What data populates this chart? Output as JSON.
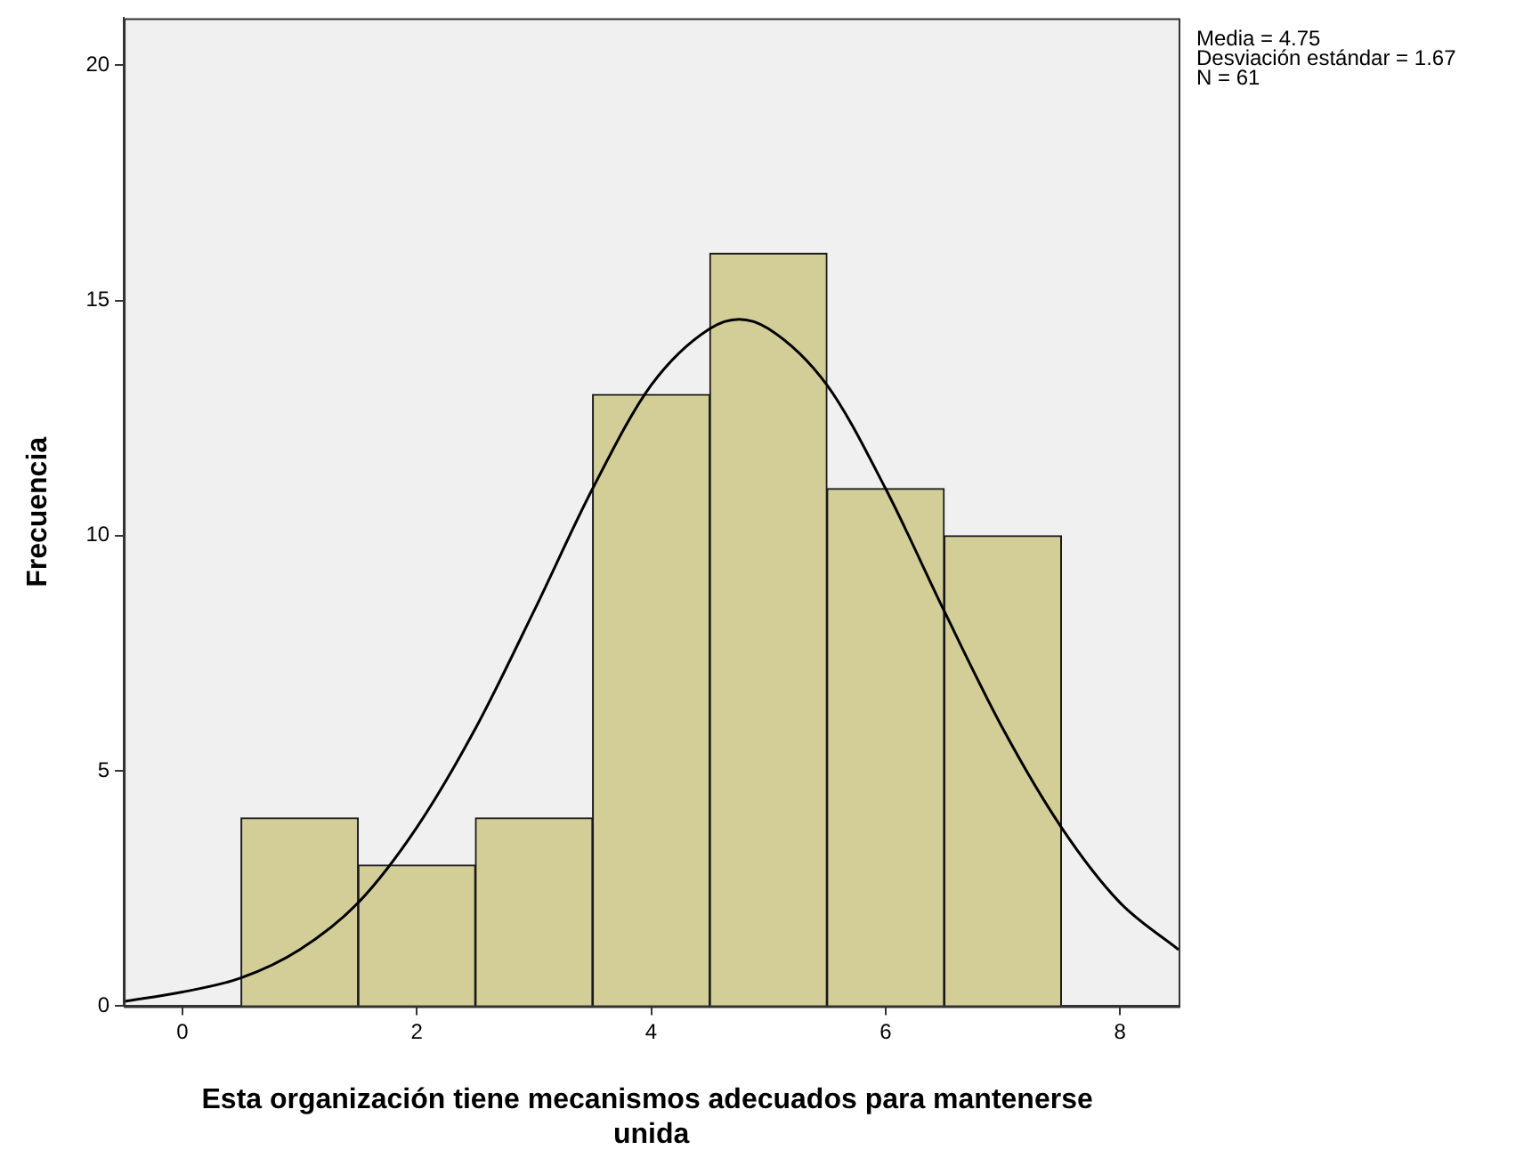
{
  "chart_data": {
    "type": "histogram",
    "xlabel": "Esta organización tiene mecanismos adecuados para mantenerse  unida",
    "ylabel": "Frecuencia",
    "bins": [
      0.5,
      1.5,
      2.5,
      3.5,
      4.5,
      5.5,
      6.5,
      7.5
    ],
    "values": [
      4,
      3,
      4,
      13,
      16,
      11,
      10
    ],
    "color": "#d3ce97",
    "series": [
      {
        "type": "line",
        "color": "#000000",
        "x": [
          -0.5,
          0,
          0.5,
          1,
          1.5,
          2,
          2.5,
          3,
          3.5,
          4,
          4.5,
          4.75,
          5,
          5.5,
          6,
          6.5,
          7,
          7.5,
          8,
          8.5
        ],
        "values": [
          0.1,
          0.3,
          0.6,
          1.2,
          2.2,
          3.8,
          5.9,
          8.4,
          11.0,
          13.2,
          14.4,
          14.6,
          14.4,
          13.2,
          11.0,
          8.4,
          5.9,
          3.8,
          2.2,
          1.2
        ]
      }
    ],
    "marker": "none",
    "xlim": [
      -0.5,
      8.5
    ],
    "xticks": [
      0,
      2,
      4,
      6,
      8
    ],
    "ylim": [
      0,
      21
    ],
    "yticks": [
      0,
      5,
      10,
      15,
      20
    ],
    "grid": false,
    "legend": false,
    "annotations": [
      "Media = 4.75\nDesviación estándar = 1.67\nN = 61"
    ]
  }
}
